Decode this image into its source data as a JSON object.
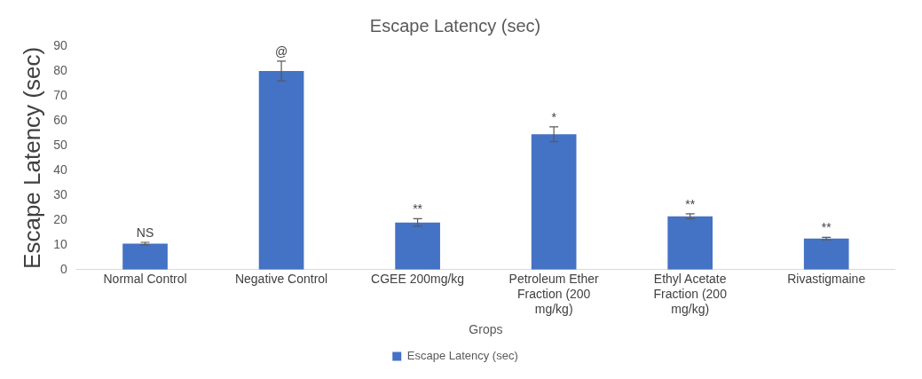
{
  "chart_data": {
    "type": "bar",
    "title": "Escape Latency (sec)",
    "xlabel": "Grops",
    "ylabel": "Escape Latency (sec)",
    "categories": [
      "Normal Control",
      "Negative Control",
      "CGEE 200mg/kg",
      "Petroleum Ether Fraction (200 mg/kg)",
      "Ethyl Acetate Fraction (200 mg/kg)",
      "Rivastigmaine"
    ],
    "series": [
      {
        "name": "Escape Latency (sec)",
        "color": "#4472c4",
        "values": [
          10.5,
          80,
          19,
          54.5,
          21.5,
          12.5
        ],
        "errors": [
          0.5,
          4,
          1.5,
          3,
          1,
          0.5
        ]
      }
    ],
    "ylim": [
      0,
      90
    ],
    "yticks": [
      0,
      10,
      20,
      30,
      40,
      50,
      60,
      70,
      80,
      90
    ],
    "grid": false,
    "legend": "bottom",
    "annotations": [
      {
        "text": "NS",
        "x": "Normal Control",
        "y": 11
      },
      {
        "text": "@",
        "x": "Negative Control",
        "y": 84
      },
      {
        "text": "**",
        "x": "CGEE 200mg/kg",
        "y": 20.5
      },
      {
        "text": "*",
        "x": "Petroleum Ether Fraction (200 mg/kg)",
        "y": 57.5
      },
      {
        "text": "**",
        "x": "Ethyl Acetate Fraction (200 mg/kg)",
        "y": 22.5
      },
      {
        "text": "**",
        "x": "Rivastigmaine",
        "y": 13
      }
    ]
  }
}
